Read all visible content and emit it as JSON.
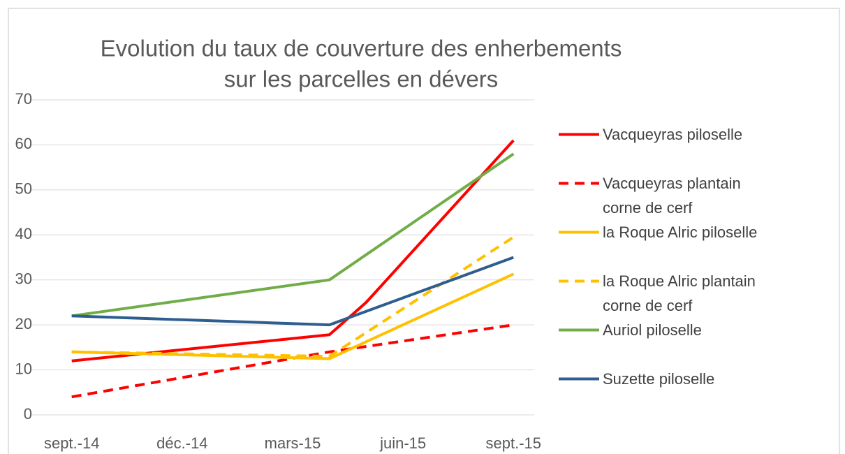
{
  "chart_data": {
    "type": "line",
    "title": "Evolution du taux de couverture des enherbements",
    "subtitle": "sur les parcelles en dévers",
    "xlim": [
      "2014-08",
      "2015-10"
    ],
    "xticks": [
      {
        "value": "2014-09",
        "label": "sept.-14"
      },
      {
        "value": "2014-12",
        "label": "déc.-14"
      },
      {
        "value": "2015-03",
        "label": "mars-15"
      },
      {
        "value": "2015-06",
        "label": "juin-15"
      },
      {
        "value": "2015-09",
        "label": "sept.-15"
      }
    ],
    "ylim": [
      0,
      70
    ],
    "yticks": [
      0,
      10,
      20,
      30,
      40,
      50,
      60,
      70
    ],
    "grid": true,
    "legend": "right",
    "series": [
      {
        "name": "Vacqueyras piloselle",
        "color": "#ff0000",
        "dash": "solid",
        "x": [
          "2014-09",
          "2015-04",
          "2015-05",
          "2015-09"
        ],
        "values": [
          12,
          17.8,
          25,
          61
        ]
      },
      {
        "name": "Vacqueyras plantain corne de cerf",
        "color": "#ff0000",
        "dash": "dashed",
        "x": [
          "2014-09",
          "2015-04",
          "2015-09"
        ],
        "values": [
          4,
          14,
          20
        ]
      },
      {
        "name": "la Roque Alric piloselle",
        "color": "#ffc000",
        "dash": "solid",
        "x": [
          "2014-09",
          "2015-04",
          "2015-09"
        ],
        "values": [
          14,
          12.5,
          31.3
        ]
      },
      {
        "name": "la Roque Alric plantain corne de cerf",
        "color": "#ffc000",
        "dash": "dashed",
        "x": [
          "2014-09",
          "2015-04",
          "2015-09"
        ],
        "values": [
          14,
          13,
          39.5
        ]
      },
      {
        "name": "Auriol piloselle",
        "color": "#70ad47",
        "dash": "solid",
        "x": [
          "2014-09",
          "2015-04",
          "2015-09"
        ],
        "values": [
          22,
          30,
          58
        ]
      },
      {
        "name": "Suzette piloselle",
        "color": "#2e5d8f",
        "dash": "solid",
        "x": [
          "2014-09",
          "2015-04",
          "2015-09"
        ],
        "values": [
          22,
          20,
          35
        ]
      }
    ]
  }
}
